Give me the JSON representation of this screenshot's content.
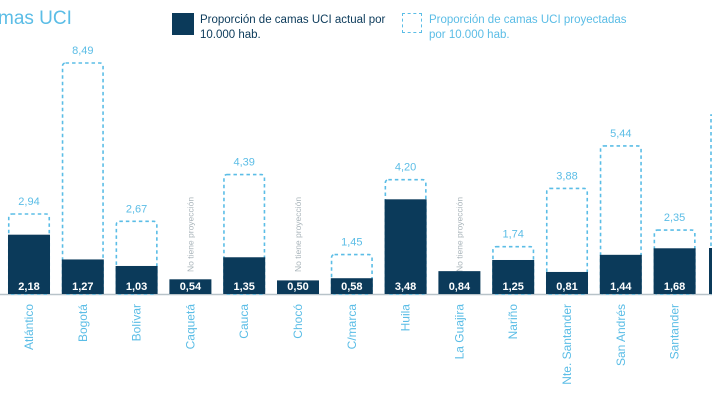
{
  "title": "mas UCI",
  "legend": {
    "actual": "Proporción de camas UCI actual por 10.000 hab.",
    "projected": "Proporción de camas UCI proyectadas por 10.000 hab."
  },
  "colors": {
    "actual": "#0b3a5a",
    "projected": "#5bbde6",
    "axis": "#b8c3c9"
  },
  "chart_data": {
    "type": "bar",
    "categories": [
      "Atlántico",
      "Bogotá",
      "Bolívar",
      "Caquetá",
      "Cauca",
      "Chocó",
      "C/marca",
      "Huila",
      "La Guajira",
      "Nariño",
      "Nte. Santander",
      "San Andrés",
      "Santander"
    ],
    "series": [
      {
        "name": "Proporción de camas UCI actual por 10.000 hab.",
        "values": [
          2.18,
          1.27,
          1.03,
          0.54,
          1.35,
          0.5,
          0.58,
          3.48,
          0.84,
          1.25,
          0.81,
          1.44,
          1.68
        ],
        "labels": [
          "2,18",
          "1,27",
          "1,03",
          "0,54",
          "1,35",
          "0,50",
          "0,58",
          "3,48",
          "0,84",
          "1,25",
          "0,81",
          "1,44",
          "1,68"
        ]
      },
      {
        "name": "Proporción de camas UCI proyectadas por 10.000 hab.",
        "values": [
          2.94,
          8.49,
          2.67,
          null,
          4.39,
          null,
          1.45,
          4.2,
          null,
          1.74,
          3.88,
          5.44,
          2.35
        ],
        "labels": [
          "2,94",
          "8,49",
          "2,67",
          null,
          "4,39",
          null,
          "1,45",
          "4,20",
          null,
          "1,74",
          "3,88",
          "5,44",
          "2,35"
        ]
      }
    ],
    "no_projection_label": "No tiene proyección",
    "ylim": [
      0,
      8.49
    ]
  }
}
